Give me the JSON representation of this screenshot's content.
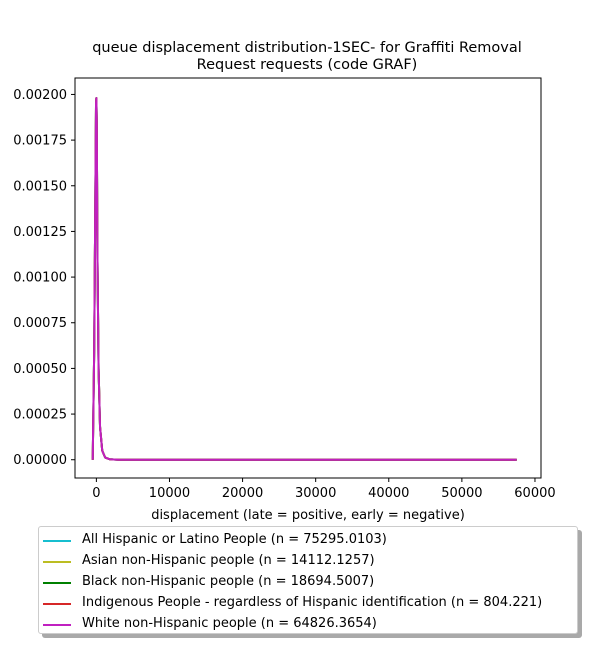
{
  "chart_data": {
    "type": "line",
    "title": "queue displacement distribution-1SEC-  for Graffiti Removal\nRequest  requests (code GRAF)",
    "xlabel": "displacement (late = positive, early = negative)",
    "ylabel": "",
    "xlim": [
      -2925,
      60825
    ],
    "ylim": [
      -0.0001,
      0.00209
    ],
    "xticks": [
      0,
      10000,
      20000,
      30000,
      40000,
      50000,
      60000
    ],
    "xtick_labels": [
      "0",
      "10000",
      "20000",
      "30000",
      "40000",
      "50000",
      "60000"
    ],
    "yticks": [
      0,
      0.00025,
      0.0005,
      0.00075,
      0.001,
      0.00125,
      0.0015,
      0.00175,
      0.002
    ],
    "ytick_labels": [
      "0.00000",
      "0.00025",
      "0.00050",
      "0.00075",
      "0.00100",
      "0.00125",
      "0.00150",
      "0.00175",
      "0.00200"
    ],
    "grid": false,
    "legend_position": "below",
    "series": [
      {
        "name": "All Hispanic or Latino People (n = 75295.0103)",
        "color": "#17becf",
        "x": [
          -500,
          -300,
          -150,
          -50,
          0,
          50,
          150,
          300,
          500,
          800,
          1200,
          1800,
          3000,
          10000,
          57500
        ],
        "y": [
          0,
          0.0006,
          0.0014,
          0.00195,
          0.00198,
          0.00185,
          0.0011,
          0.0005,
          0.00018,
          5e-05,
          1.2e-05,
          3e-06,
          0,
          0,
          0
        ]
      },
      {
        "name": "Asian non-Hispanic people (n = 14112.1257)",
        "color": "#bcbd22",
        "x": [
          -500,
          -300,
          -150,
          -50,
          0,
          50,
          150,
          300,
          500,
          800,
          1200,
          1800,
          3000,
          10000,
          57500
        ],
        "y": [
          0,
          0.0006,
          0.0014,
          0.00195,
          0.00198,
          0.00185,
          0.0011,
          0.0005,
          0.00018,
          5e-05,
          1.2e-05,
          3e-06,
          0,
          0,
          0
        ]
      },
      {
        "name": "Black non-Hispanic people (n = 18694.5007)",
        "color": "#008000",
        "x": [
          -500,
          -300,
          -150,
          -50,
          0,
          50,
          150,
          300,
          500,
          800,
          1200,
          1800,
          3000,
          10000,
          57500
        ],
        "y": [
          0,
          0.0006,
          0.0014,
          0.00195,
          0.00198,
          0.00185,
          0.0011,
          0.0005,
          0.00018,
          5e-05,
          1.2e-05,
          3e-06,
          0,
          0,
          0
        ]
      },
      {
        "name": "Indigenous People - regardless of Hispanic identification (n = 804.221)",
        "color": "#d62728",
        "x": [
          -500,
          -300,
          -150,
          -50,
          0,
          50,
          150,
          300,
          500,
          800,
          1200,
          1800,
          3000,
          10000,
          57500
        ],
        "y": [
          0,
          0.0006,
          0.0014,
          0.00195,
          0.00198,
          0.00185,
          0.0011,
          0.0005,
          0.00018,
          5e-05,
          1.2e-05,
          3e-06,
          0,
          0,
          0
        ]
      },
      {
        "name": "White non-Hispanic people (n = 64826.3654)",
        "color": "#c020c0",
        "x": [
          -500,
          -300,
          -150,
          -50,
          0,
          50,
          150,
          300,
          500,
          800,
          1200,
          1800,
          3000,
          10000,
          57500
        ],
        "y": [
          0,
          0.0006,
          0.0014,
          0.00195,
          0.00198,
          0.00185,
          0.0011,
          0.0005,
          0.00018,
          5e-05,
          1.2e-05,
          3e-06,
          0,
          0,
          0
        ]
      }
    ]
  }
}
